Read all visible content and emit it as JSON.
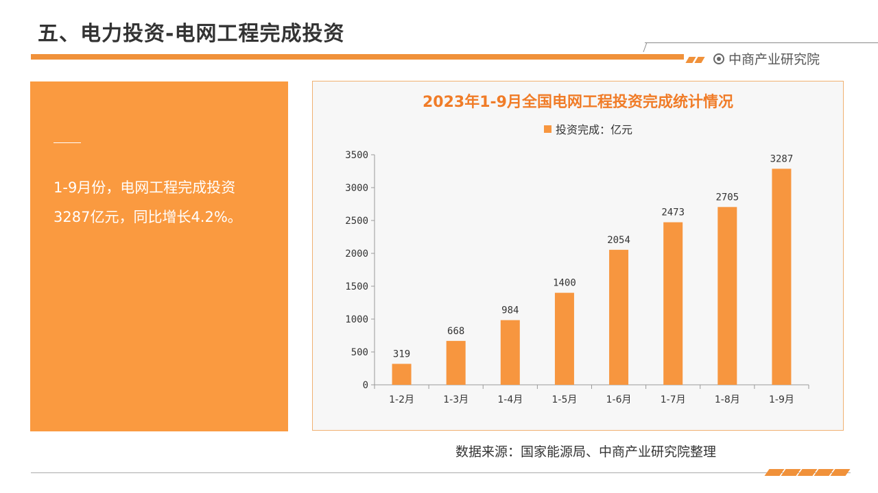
{
  "header": {
    "title": "五、电力投资-电网工程完成投资",
    "brand": "中商产业研究院"
  },
  "summary": {
    "line1": "1-9月份，电网工程完成投资",
    "line2": "3287亿元，同比增长4.2%。"
  },
  "source": "数据来源：国家能源局、中商产业研究院整理",
  "colors": {
    "accent": "#f0913a",
    "bar": "#f7963f",
    "title": "#f07c28",
    "panel": "#fa9a40"
  },
  "chart_data": {
    "type": "bar",
    "title": "2023年1-9月全国电网工程投资完成统计情况",
    "categories": [
      "1-2月",
      "1-3月",
      "1-4月",
      "1-5月",
      "1-6月",
      "1-7月",
      "1-8月",
      "1-9月"
    ],
    "series": [
      {
        "name": "投资完成：亿元",
        "values": [
          319,
          668,
          984,
          1400,
          2054,
          2473,
          2705,
          3287
        ]
      }
    ],
    "ylim": [
      0,
      3500
    ],
    "yticks": [
      0,
      500,
      1000,
      1500,
      2000,
      2500,
      3000,
      3500
    ],
    "legend_position": "top",
    "grid": false,
    "data_labels": true
  }
}
